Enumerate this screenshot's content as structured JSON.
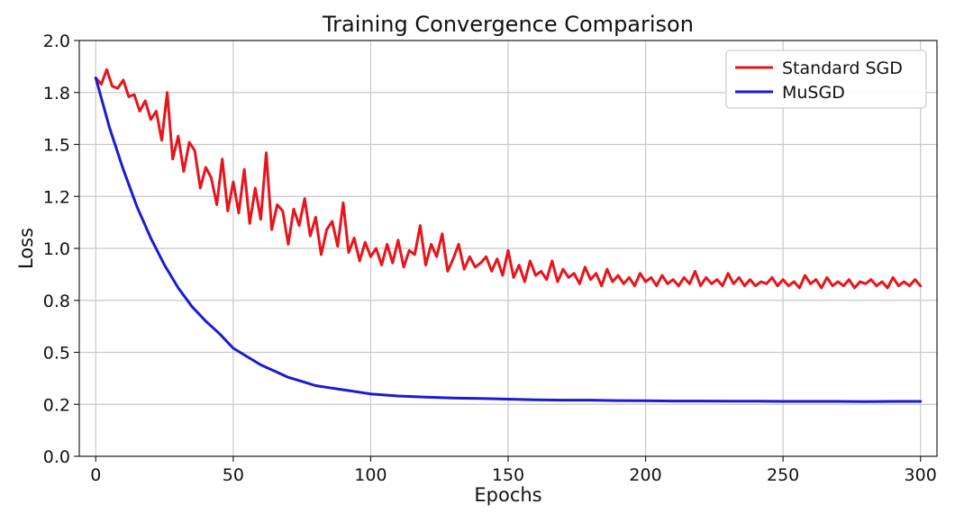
{
  "chart_data": {
    "type": "line",
    "title": "Training Convergence Comparison",
    "xlabel": "Epochs",
    "ylabel": "Loss",
    "xlim": [
      -6,
      306
    ],
    "ylim": [
      0.0,
      2.0
    ],
    "xticks": [
      0,
      50,
      100,
      150,
      200,
      250,
      300
    ],
    "xtick_labels": [
      "0",
      "50",
      "100",
      "150",
      "200",
      "250",
      "300"
    ],
    "yticks": [
      0.0,
      0.25,
      0.5,
      0.75,
      1.0,
      1.25,
      1.5,
      1.75,
      2.0
    ],
    "ytick_labels": [
      "0.0",
      "0.2",
      "0.5",
      "0.8",
      "1.0",
      "1.2",
      "1.5",
      "1.8",
      "2.0"
    ],
    "grid": true,
    "legend_position": "top-right",
    "series": [
      {
        "name": "Standard SGD",
        "color": "#e8141b",
        "x": [
          0,
          2,
          4,
          6,
          8,
          10,
          12,
          14,
          16,
          18,
          20,
          22,
          24,
          26,
          28,
          30,
          32,
          34,
          36,
          38,
          40,
          42,
          44,
          46,
          48,
          50,
          52,
          54,
          56,
          58,
          60,
          62,
          64,
          66,
          68,
          70,
          72,
          74,
          76,
          78,
          80,
          82,
          84,
          86,
          88,
          90,
          92,
          94,
          96,
          98,
          100,
          102,
          104,
          106,
          108,
          110,
          112,
          114,
          116,
          118,
          120,
          122,
          124,
          126,
          128,
          130,
          132,
          134,
          136,
          138,
          140,
          142,
          144,
          146,
          148,
          150,
          152,
          154,
          156,
          158,
          160,
          162,
          164,
          166,
          168,
          170,
          172,
          174,
          176,
          178,
          180,
          182,
          184,
          186,
          188,
          190,
          192,
          194,
          196,
          198,
          200,
          202,
          204,
          206,
          208,
          210,
          212,
          214,
          216,
          218,
          220,
          222,
          224,
          226,
          228,
          230,
          232,
          234,
          236,
          238,
          240,
          242,
          244,
          246,
          248,
          250,
          252,
          254,
          256,
          258,
          260,
          262,
          264,
          266,
          268,
          270,
          272,
          274,
          276,
          278,
          280,
          282,
          284,
          286,
          288,
          290,
          292,
          294,
          296,
          298,
          300
        ],
        "values": [
          1.82,
          1.79,
          1.86,
          1.78,
          1.77,
          1.81,
          1.73,
          1.74,
          1.66,
          1.71,
          1.62,
          1.66,
          1.52,
          1.75,
          1.43,
          1.54,
          1.37,
          1.51,
          1.47,
          1.29,
          1.39,
          1.34,
          1.21,
          1.43,
          1.18,
          1.32,
          1.17,
          1.38,
          1.12,
          1.29,
          1.14,
          1.46,
          1.09,
          1.21,
          1.18,
          1.02,
          1.19,
          1.11,
          1.24,
          1.06,
          1.15,
          0.97,
          1.09,
          1.13,
          1.01,
          1.22,
          0.98,
          1.05,
          0.94,
          1.03,
          0.96,
          1.0,
          0.92,
          1.02,
          0.93,
          1.04,
          0.91,
          0.99,
          0.97,
          1.11,
          0.92,
          1.02,
          0.96,
          1.07,
          0.89,
          0.95,
          1.02,
          0.9,
          0.96,
          0.91,
          0.93,
          0.96,
          0.89,
          0.95,
          0.87,
          0.99,
          0.86,
          0.92,
          0.84,
          0.94,
          0.87,
          0.89,
          0.85,
          0.94,
          0.84,
          0.9,
          0.86,
          0.88,
          0.83,
          0.91,
          0.85,
          0.88,
          0.82,
          0.9,
          0.84,
          0.87,
          0.83,
          0.86,
          0.82,
          0.88,
          0.84,
          0.86,
          0.82,
          0.87,
          0.83,
          0.85,
          0.82,
          0.86,
          0.83,
          0.89,
          0.82,
          0.86,
          0.83,
          0.85,
          0.82,
          0.88,
          0.83,
          0.86,
          0.82,
          0.85,
          0.82,
          0.84,
          0.83,
          0.86,
          0.82,
          0.85,
          0.82,
          0.84,
          0.81,
          0.87,
          0.83,
          0.85,
          0.81,
          0.86,
          0.82,
          0.84,
          0.82,
          0.85,
          0.81,
          0.84,
          0.83,
          0.85,
          0.82,
          0.84,
          0.81,
          0.86,
          0.82,
          0.84,
          0.82,
          0.85,
          0.82
        ]
      },
      {
        "name": "MuSGD",
        "color": "#1a1ad6",
        "x": [
          0,
          5,
          10,
          15,
          20,
          25,
          30,
          35,
          40,
          45,
          50,
          55,
          60,
          65,
          70,
          75,
          80,
          85,
          90,
          95,
          100,
          110,
          120,
          130,
          140,
          150,
          160,
          170,
          180,
          190,
          200,
          210,
          220,
          230,
          240,
          250,
          260,
          270,
          280,
          290,
          300
        ],
        "values": [
          1.82,
          1.58,
          1.38,
          1.2,
          1.05,
          0.92,
          0.81,
          0.72,
          0.65,
          0.59,
          0.52,
          0.48,
          0.44,
          0.41,
          0.38,
          0.36,
          0.34,
          0.33,
          0.32,
          0.31,
          0.3,
          0.29,
          0.285,
          0.28,
          0.278,
          0.275,
          0.272,
          0.27,
          0.27,
          0.268,
          0.267,
          0.266,
          0.266,
          0.265,
          0.265,
          0.264,
          0.264,
          0.264,
          0.263,
          0.264,
          0.264
        ]
      }
    ]
  }
}
